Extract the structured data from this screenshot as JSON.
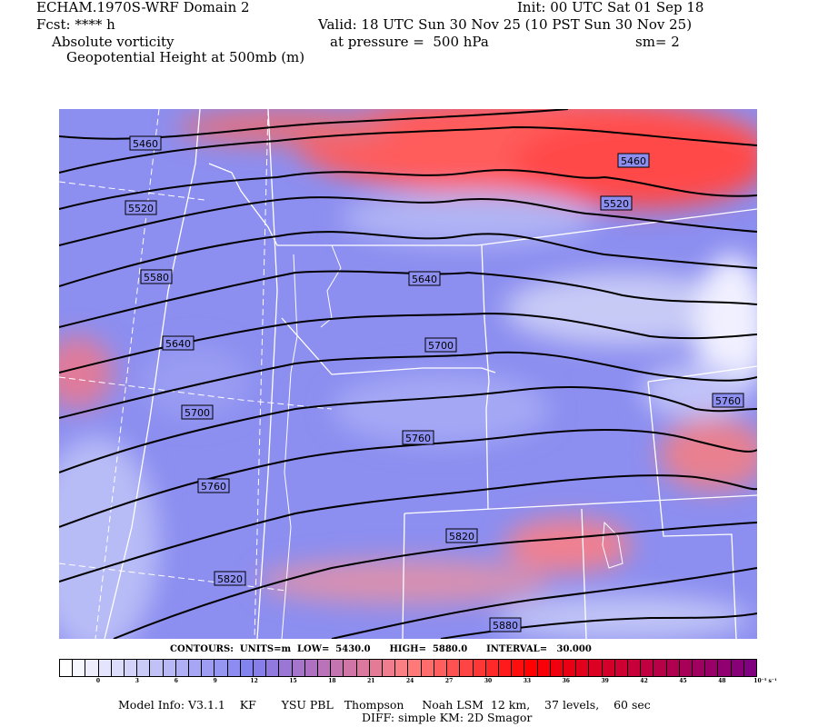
{
  "header": {
    "title": "ECHAM.1970S-WRF Domain 2",
    "init": "Init: 00 UTC Sat 01 Sep 18",
    "fcst": "Fcst: **** h",
    "valid": "Valid: 18 UTC Sun 30 Nov 25 (10 PST Sun 30 Nov 25)",
    "field": "Absolute vorticity",
    "pressure": "at pressure =  500 hPa",
    "smooth": "sm= 2",
    "contour_field": "Geopotential Height at 500mb (m)"
  },
  "map": {
    "contour_labels": [
      "5460",
      "5520",
      "5580",
      "5640",
      "5700",
      "5760",
      "5820",
      "5460",
      "5520",
      "5640",
      "5700",
      "5760",
      "5820",
      "5880",
      "5760"
    ],
    "colors": {
      "background": "#8c8ef0",
      "low": "#ffffff",
      "high": "#ff3030",
      "contour": "#000000",
      "boundaries": "#ffffff"
    }
  },
  "contours_info": "CONTOURS:  UNITS=m  LOW=  5430.0      HIGH=  5880.0      INTERVAL=   30.000",
  "colorbar": {
    "labels": [
      "0",
      "3",
      "6",
      "9",
      "12",
      "15",
      "18",
      "21",
      "24",
      "27",
      "30",
      "33",
      "36",
      "39",
      "42",
      "45",
      "48"
    ],
    "units": "10⁻⁵ s⁻¹",
    "colors": [
      "#ffffff",
      "#8080f0",
      "#b070c0",
      "#ff8080",
      "#ff0000",
      "#c00040",
      "#800080"
    ]
  },
  "footer": {
    "model_info": "Model Info: V3.1.1    KF       YSU PBL   Thompson     Noah LSM  12 km,    37 levels,    60 sec",
    "diff": "DIFF: simple KM: 2D Smagor"
  }
}
